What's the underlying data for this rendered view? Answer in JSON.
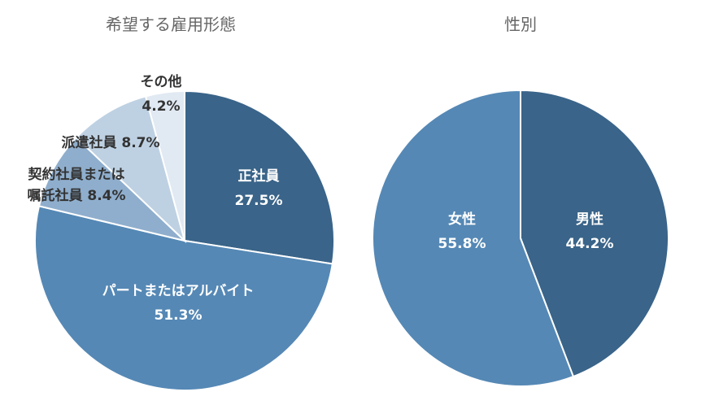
{
  "chart_data": [
    {
      "type": "pie",
      "title": "希望する雇用形態",
      "slices": [
        {
          "label": "正社員",
          "value": 27.5,
          "value_label": "27.5%",
          "color": "#3a6489"
        },
        {
          "label": "パートまたはアルバイト",
          "value": 51.3,
          "value_label": "51.3%",
          "color": "#5588b5"
        },
        {
          "label": "契約社員または\n嘱託社員",
          "value": 8.4,
          "value_label": "8.4%",
          "color": "#8faecd"
        },
        {
          "label": "派遣社員",
          "value": 8.7,
          "value_label": "8.7%",
          "color": "#bed1e3"
        },
        {
          "label": "その他",
          "value": 4.2,
          "value_label": "4.2%",
          "color": "#e1e9f2"
        }
      ]
    },
    {
      "type": "pie",
      "title": "性別",
      "slices": [
        {
          "label": "男性",
          "value": 44.2,
          "value_label": "44.2%",
          "color": "#3a6489"
        },
        {
          "label": "女性",
          "value": 55.8,
          "value_label": "55.8%",
          "color": "#5588b5"
        }
      ]
    }
  ]
}
